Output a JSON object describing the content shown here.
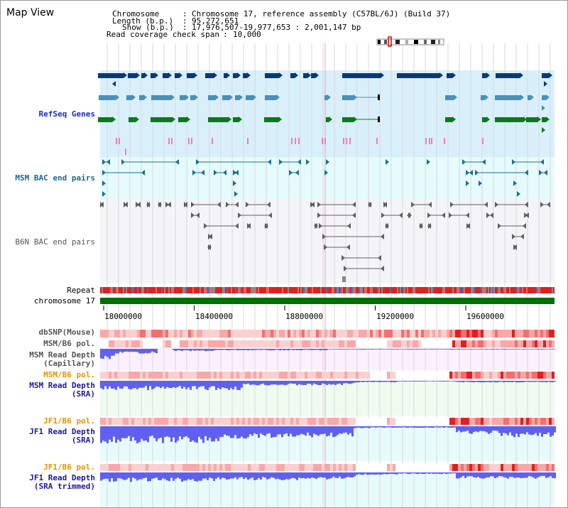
{
  "title": "Map View",
  "info": {
    "chromosome_label": "Chromosome",
    "chromosome_value": "Chromosome 17, reference assembly (C57BL/6J) (Build 37)",
    "length_label": "Length (b.p.)",
    "length_value": "95,272,651",
    "show_label": "Show (b.p.)",
    "show_value": "17,976,507-19,977,653 : 2,001,147 bp",
    "coverage_label": "Read coverage check span",
    "coverage_value": "10,000"
  },
  "tracks": {
    "refseq": "RefSeq Genes",
    "msm_bac": "MSM BAC end pairs",
    "b6n_bac": "B6N BAC end pairs",
    "repeat": "Repeat",
    "chromosome": "chromosome 17",
    "dbsnp": "dbSNP(Mouse)",
    "msm_b6_pol": "MSM/B6 pol.",
    "msm_depth_cap_1": "MSM Read Depth",
    "msm_depth_cap_2": "(Capillary)",
    "msm_b6_pol2": "MSM/B6 pol.",
    "msm_depth_sra_1": "MSM Read Depth",
    "msm_depth_sra_2": "(SRA)",
    "jf1_b6_pol": "JF1/B6 pol.",
    "jf1_depth_sra_1": "JF1 Read Depth",
    "jf1_depth_sra_2": "(SRA)",
    "jf1_b6_pol2": "JF1/B6 pol.",
    "jf1_depth_trim_1": "JF1 Read Depth",
    "jf1_depth_trim_2": "(SRA trimmed)"
  },
  "axis": {
    "ticks": [
      "18000000",
      "18400000",
      "18800000",
      "19200000",
      "19600000"
    ]
  },
  "colors": {
    "refseq_bg": "#d9f0fb",
    "bac_bg": "#e6fbfb",
    "b6n_bg": "#f5f5f7",
    "chromosome_bar": "#007000",
    "gene_navy": "#0b3a73",
    "gene_steel": "#4a90b8",
    "gene_green": "#0a7a1a",
    "depth_blue": "#6060f0"
  }
}
